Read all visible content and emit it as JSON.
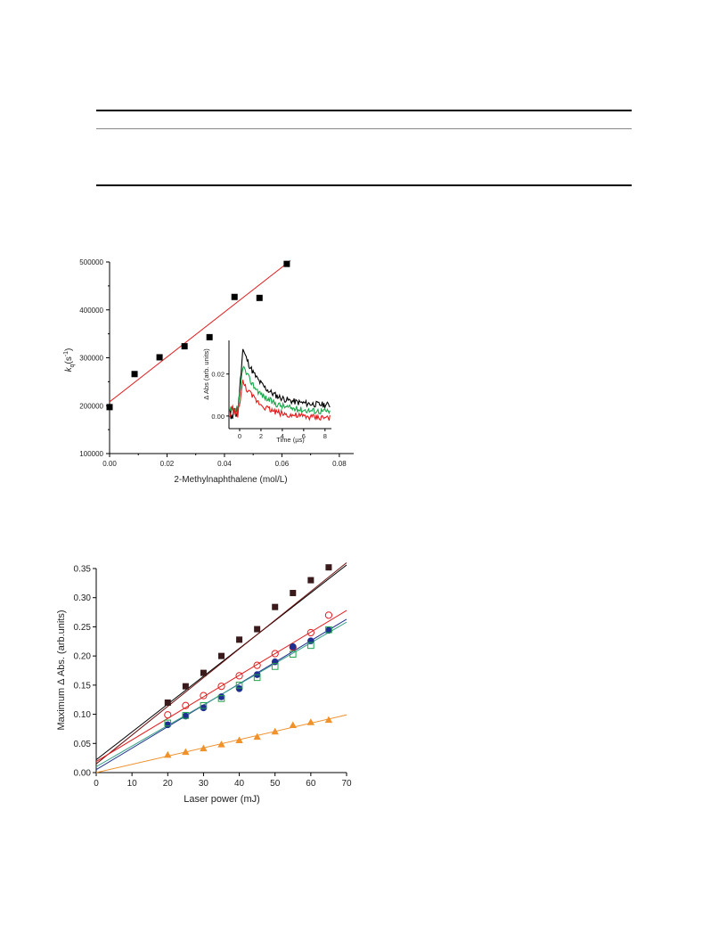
{
  "colors": {
    "black": "#000000",
    "red": "#e41a1c",
    "green": "#1aa64a",
    "dark_red": "#6b0f0f",
    "navy": "#1f2f8f",
    "teal": "#3aa38a",
    "orange": "#f0912a",
    "dark_square": "#3a1a1a"
  },
  "chart_data": [
    {
      "type": "scatter",
      "xlabel": "2-Methylnaphthalene (mol/L)",
      "ylabel_main": "k",
      "ylabel_sub": "q",
      "ylabel_unit_pre": "(s",
      "ylabel_unit_sup": "-1",
      "ylabel_unit_post": ")",
      "xlim": [
        0,
        0.085
      ],
      "ylim": [
        100000,
        500000
      ],
      "x_ticks": [
        "0.00",
        "0.02",
        "0.04",
        "0.06",
        "0.08"
      ],
      "x_tick_values": [
        0,
        0.02,
        0.04,
        0.06,
        0.08
      ],
      "y_ticks": [
        "100000",
        "200000",
        "300000",
        "400000",
        "500000"
      ],
      "y_tick_values": [
        100000,
        200000,
        300000,
        400000,
        500000
      ],
      "series": [
        {
          "marker": "square",
          "x": [
            0.0,
            0.0087,
            0.0174,
            0.0261,
            0.0348,
            0.0435,
            0.0522,
            0.0617
          ],
          "y": [
            197000,
            266000,
            301000,
            324000,
            343000,
            427000,
            425000,
            496000
          ]
        }
      ],
      "fit": {
        "x0": 0,
        "y0": 208000,
        "x1": 0.063,
        "y1": 503000
      },
      "inset": {
        "type": "line",
        "xlabel": "Time (µs)",
        "ylabel": "Δ Abs (arb. units)",
        "xlim": [
          -1,
          8.6
        ],
        "ylim": [
          -0.006,
          0.036
        ],
        "x_ticks": [
          "0",
          "2",
          "4",
          "6",
          "8"
        ],
        "x_tick_values": [
          0,
          2,
          4,
          6,
          8
        ],
        "y_ticks": [
          "0.00",
          "0.02"
        ],
        "y_tick_values": [
          0,
          0.02
        ]
      }
    },
    {
      "type": "scatter",
      "xlabel": "Laser power (mJ)",
      "ylabel": "Maximum Δ Abs. (arb.units)",
      "xlim": [
        0,
        70
      ],
      "ylim": [
        0,
        0.35
      ],
      "x_ticks": [
        "0",
        "10",
        "20",
        "30",
        "40",
        "50",
        "60",
        "70"
      ],
      "x_tick_values": [
        0,
        10,
        20,
        30,
        40,
        50,
        60,
        70
      ],
      "y_ticks": [
        "0.00",
        "0.05",
        "0.10",
        "0.15",
        "0.20",
        "0.25",
        "0.30",
        "0.35"
      ],
      "y_tick_values": [
        0,
        0.05,
        0.1,
        0.15,
        0.2,
        0.25,
        0.3,
        0.35
      ],
      "x": [
        20,
        25,
        30,
        35,
        40,
        45,
        50,
        55,
        60,
        65
      ],
      "series": [
        {
          "marker": "filled-square",
          "values": [
            0.12,
            0.148,
            0.171,
            0.2,
            0.228,
            0.246,
            0.284,
            0.308,
            0.33,
            0.352
          ],
          "fit": [
            0.022,
            0.356
          ]
        },
        {
          "marker": "open-circle",
          "values": [
            0.099,
            0.115,
            0.132,
            0.148,
            0.166,
            0.184,
            0.204,
            0.215,
            0.24,
            0.27
          ],
          "fit": [
            0.019,
            0.278
          ]
        },
        {
          "marker": "filled-circle",
          "values": [
            0.082,
            0.097,
            0.111,
            0.13,
            0.144,
            0.168,
            0.19,
            0.216,
            0.226,
            0.244
          ],
          "fit": [
            0.005,
            0.263
          ]
        },
        {
          "marker": "open-square",
          "values": [
            0.085,
            0.098,
            0.115,
            0.127,
            0.15,
            0.163,
            0.182,
            0.203,
            0.218,
            0.245
          ],
          "fit": [
            0.01,
            0.258
          ]
        },
        {
          "marker": "triangle",
          "values": [
            0.03,
            0.035,
            0.041,
            0.048,
            0.055,
            0.061,
            0.07,
            0.081,
            0.086,
            0.09
          ],
          "fit": [
            0.0,
            0.099
          ]
        }
      ]
    }
  ]
}
